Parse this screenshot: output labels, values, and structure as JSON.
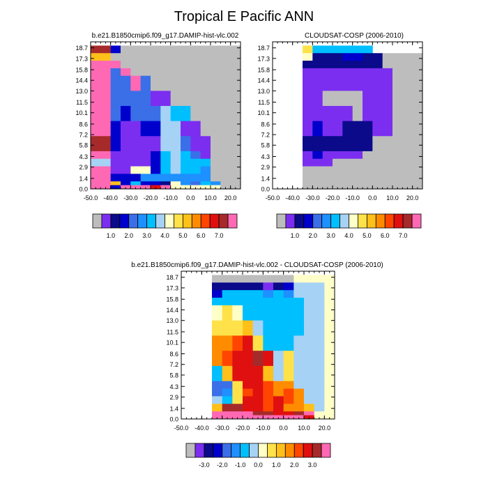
{
  "figure": {
    "title": "Tropical E Pacific ANN"
  },
  "colors": {
    "missing": "#bdbdbd",
    "palette": [
      "#bdbdbd",
      "#7b2ef0",
      "#0a0a8a",
      "#0000cd",
      "#3a6fe8",
      "#1e90ff",
      "#00bfff",
      "#a6d2f5",
      "#ffffc8",
      "#ffe24a",
      "#ffc01a",
      "#ff8c00",
      "#ff4500",
      "#e01010",
      "#a62a2a",
      "#ff69b4"
    ]
  },
  "chart_data": [
    {
      "type": "heatmap",
      "title": "b.e21.B1850cmip6.f09_g17.DAMIP-hist-vlc.002",
      "xlim": [
        -50,
        25
      ],
      "x_ticks": [
        "-50.0",
        "-40.0",
        "-30.0",
        "-20.0",
        "-10.0",
        "0.0",
        "10.0",
        "20.0"
      ],
      "y_ticks": [
        "0.0",
        "1.4",
        "2.9",
        "4.3",
        "5.8",
        "7.2",
        "8.6",
        "10.1",
        "11.5",
        "13.0",
        "14.4",
        "15.8",
        "17.3",
        "18.7"
      ],
      "legend_labels": [
        "1.0",
        "2.0",
        "3.0",
        "4.0",
        "5.0",
        "6.0",
        "7.0"
      ],
      "x_edges": [
        -50,
        -40,
        -35,
        -30,
        -25,
        -20,
        -15,
        -10,
        -5,
        0,
        5,
        10,
        15,
        25
      ],
      "y_edges": [
        0,
        0.5,
        1,
        2,
        3,
        4,
        5,
        7,
        9,
        11,
        13,
        15,
        16,
        17,
        18,
        19
      ],
      "grid": [
        [
          14,
          3,
          0,
          0,
          0,
          0,
          0,
          0,
          0,
          0,
          0,
          0,
          0
        ],
        [
          10,
          0,
          0,
          0,
          0,
          0,
          0,
          0,
          0,
          0,
          0,
          0,
          0
        ],
        [
          15,
          15,
          0,
          0,
          0,
          0,
          0,
          0,
          0,
          0,
          0,
          0,
          0
        ],
        [
          15,
          4,
          15,
          0,
          0,
          0,
          0,
          0,
          0,
          0,
          0,
          0,
          0
        ],
        [
          15,
          4,
          4,
          15,
          4,
          0,
          0,
          0,
          0,
          0,
          0,
          0,
          0
        ],
        [
          15,
          4,
          4,
          4,
          4,
          1,
          1,
          0,
          0,
          0,
          0,
          0,
          0
        ],
        [
          15,
          4,
          3,
          4,
          4,
          4,
          7,
          6,
          6,
          0,
          0,
          0,
          0
        ],
        [
          15,
          3,
          1,
          1,
          3,
          3,
          7,
          7,
          1,
          1,
          0,
          0,
          0
        ],
        [
          14,
          3,
          1,
          1,
          1,
          1,
          7,
          7,
          4,
          1,
          1,
          0,
          0
        ],
        [
          15,
          1,
          1,
          1,
          1,
          3,
          6,
          7,
          6,
          4,
          1,
          0,
          0
        ],
        [
          7,
          1,
          1,
          1,
          1,
          3,
          6,
          7,
          6,
          6,
          6,
          0,
          0
        ],
        [
          15,
          1,
          1,
          8,
          8,
          3,
          6,
          7,
          6,
          6,
          5,
          0,
          0
        ],
        [
          15,
          3,
          3,
          3,
          5,
          5,
          5,
          5,
          5,
          5,
          5,
          0,
          0
        ],
        [
          15,
          10,
          3,
          6,
          3,
          3,
          2,
          8,
          5,
          4,
          6,
          5,
          0
        ],
        [
          15,
          3,
          15,
          15,
          15,
          13,
          15,
          8,
          8,
          8,
          8,
          8,
          0
        ]
      ]
    },
    {
      "type": "heatmap",
      "title": "CLOUDSAT-COSP (2006-2010)",
      "xlim": [
        -50,
        25
      ],
      "x_ticks": [
        "-50.0",
        "-40.0",
        "-30.0",
        "-20.0",
        "-10.0",
        "0.0",
        "10.0",
        "20.0"
      ],
      "y_ticks": [
        "0.0",
        "1.4",
        "2.9",
        "4.3",
        "5.8",
        "7.2",
        "8.6",
        "10.1",
        "11.5",
        "13.0",
        "14.4",
        "15.8",
        "17.3",
        "18.7"
      ],
      "legend_labels": [
        "1.0",
        "2.0",
        "3.0",
        "4.0",
        "5.0",
        "6.0",
        "7.0"
      ],
      "x_edges": [
        -50,
        -40,
        -35,
        -30,
        -25,
        -20,
        -15,
        -10,
        -5,
        0,
        5,
        10,
        15,
        25
      ],
      "y_edges": [
        0,
        0.5,
        1,
        2,
        3,
        4,
        5,
        7,
        9,
        11,
        13,
        15,
        16,
        17,
        18,
        19
      ],
      "grid": [
        [
          -1,
          -1,
          9,
          6,
          6,
          6,
          6,
          6,
          6,
          -1,
          -1,
          -1,
          -1
        ],
        [
          -1,
          -1,
          8,
          2,
          2,
          2,
          3,
          3,
          2,
          2,
          0,
          0,
          0
        ],
        [
          -1,
          -1,
          2,
          2,
          2,
          2,
          2,
          2,
          2,
          2,
          0,
          0,
          0
        ],
        [
          -1,
          -1,
          1,
          1,
          1,
          1,
          1,
          1,
          1,
          1,
          1,
          0,
          0
        ],
        [
          -1,
          -1,
          1,
          1,
          1,
          1,
          1,
          1,
          1,
          1,
          1,
          0,
          0
        ],
        [
          -1,
          -1,
          1,
          1,
          0,
          0,
          0,
          0,
          1,
          1,
          1,
          0,
          0
        ],
        [
          -1,
          -1,
          1,
          1,
          1,
          1,
          1,
          0,
          1,
          1,
          1,
          0,
          0
        ],
        [
          -1,
          -1,
          1,
          3,
          1,
          1,
          2,
          2,
          2,
          1,
          1,
          0,
          0
        ],
        [
          -1,
          -1,
          2,
          2,
          2,
          2,
          2,
          2,
          2,
          0,
          0,
          0,
          0
        ],
        [
          -1,
          -1,
          1,
          3,
          1,
          1,
          1,
          1,
          0,
          0,
          0,
          0,
          0
        ],
        [
          -1,
          -1,
          1,
          1,
          1,
          0,
          0,
          0,
          0,
          0,
          0,
          0,
          0
        ],
        [
          -1,
          -1,
          0,
          0,
          0,
          0,
          0,
          0,
          0,
          0,
          0,
          0,
          0
        ],
        [
          -1,
          -1,
          0,
          0,
          0,
          0,
          0,
          0,
          0,
          0,
          0,
          0,
          0
        ],
        [
          -1,
          -1,
          0,
          0,
          0,
          0,
          0,
          0,
          0,
          0,
          0,
          0,
          0
        ],
        [
          -1,
          -1,
          0,
          0,
          0,
          0,
          0,
          0,
          0,
          0,
          0,
          0,
          0
        ]
      ]
    },
    {
      "type": "heatmap",
      "title": "b.e21.B1850cmip6.f09_g17.DAMIP-hist-vlc.002 - CLOUDSAT-COSP (2006-2010)",
      "xlim": [
        -50,
        25
      ],
      "x_ticks": [
        "-50.0",
        "-40.0",
        "-30.0",
        "-20.0",
        "-10.0",
        "0.0",
        "10.0",
        "20.0"
      ],
      "y_ticks": [
        "0.0",
        "1.4",
        "2.9",
        "4.3",
        "5.8",
        "7.2",
        "8.6",
        "10.1",
        "11.5",
        "13.0",
        "14.4",
        "15.8",
        "17.3",
        "18.7"
      ],
      "legend_labels": [
        "-3.0",
        "-2.0",
        "-1.0",
        "0.0",
        "1.0",
        "2.0",
        "3.0"
      ],
      "x_edges": [
        -50,
        -40,
        -35,
        -30,
        -25,
        -20,
        -15,
        -10,
        -5,
        0,
        5,
        10,
        15,
        20,
        25
      ],
      "y_edges": [
        0,
        0.5,
        1,
        2,
        3,
        4,
        5,
        7,
        9,
        11,
        13,
        15,
        16,
        17,
        18,
        19
      ],
      "grid": [
        [
          -1,
          -1,
          0,
          0,
          0,
          0,
          0,
          0,
          0,
          0,
          8,
          8,
          8,
          8
        ],
        [
          -1,
          -1,
          2,
          2,
          2,
          2,
          2,
          1,
          2,
          3,
          7,
          7,
          7,
          8
        ],
        [
          -1,
          -1,
          3,
          6,
          6,
          6,
          6,
          5,
          6,
          5,
          7,
          7,
          7,
          8
        ],
        [
          -1,
          -1,
          6,
          6,
          6,
          6,
          6,
          6,
          6,
          6,
          6,
          7,
          7,
          8
        ],
        [
          -1,
          -1,
          8,
          9,
          8,
          6,
          6,
          6,
          6,
          6,
          6,
          7,
          7,
          8
        ],
        [
          -1,
          -1,
          9,
          9,
          9,
          10,
          7,
          6,
          6,
          6,
          6,
          7,
          7,
          8
        ],
        [
          -1,
          -1,
          11,
          11,
          12,
          13,
          9,
          6,
          6,
          6,
          7,
          7,
          7,
          8
        ],
        [
          -1,
          -1,
          11,
          12,
          13,
          13,
          14,
          13,
          7,
          9,
          7,
          7,
          7,
          8
        ],
        [
          -1,
          -1,
          6,
          10,
          13,
          13,
          13,
          10,
          7,
          9,
          7,
          7,
          7,
          8
        ],
        [
          -1,
          -1,
          4,
          4,
          9,
          13,
          13,
          12,
          11,
          11,
          7,
          7,
          7,
          8
        ],
        [
          -1,
          -1,
          4,
          5,
          9,
          12,
          13,
          12,
          11,
          12,
          11,
          7,
          7,
          8
        ],
        [
          -1,
          -1,
          7,
          6,
          9,
          13,
          13,
          12,
          13,
          12,
          11,
          7,
          7,
          8
        ],
        [
          -1,
          -1,
          10,
          14,
          14,
          13,
          13,
          12,
          13,
          11,
          11,
          10,
          7,
          8
        ],
        [
          -1,
          -1,
          15,
          15,
          15,
          15,
          14,
          14,
          13,
          13,
          14,
          15,
          8,
          8
        ],
        [
          -1,
          -1,
          15,
          15,
          15,
          15,
          15,
          15,
          15,
          15,
          15,
          13,
          8,
          8
        ]
      ]
    }
  ]
}
